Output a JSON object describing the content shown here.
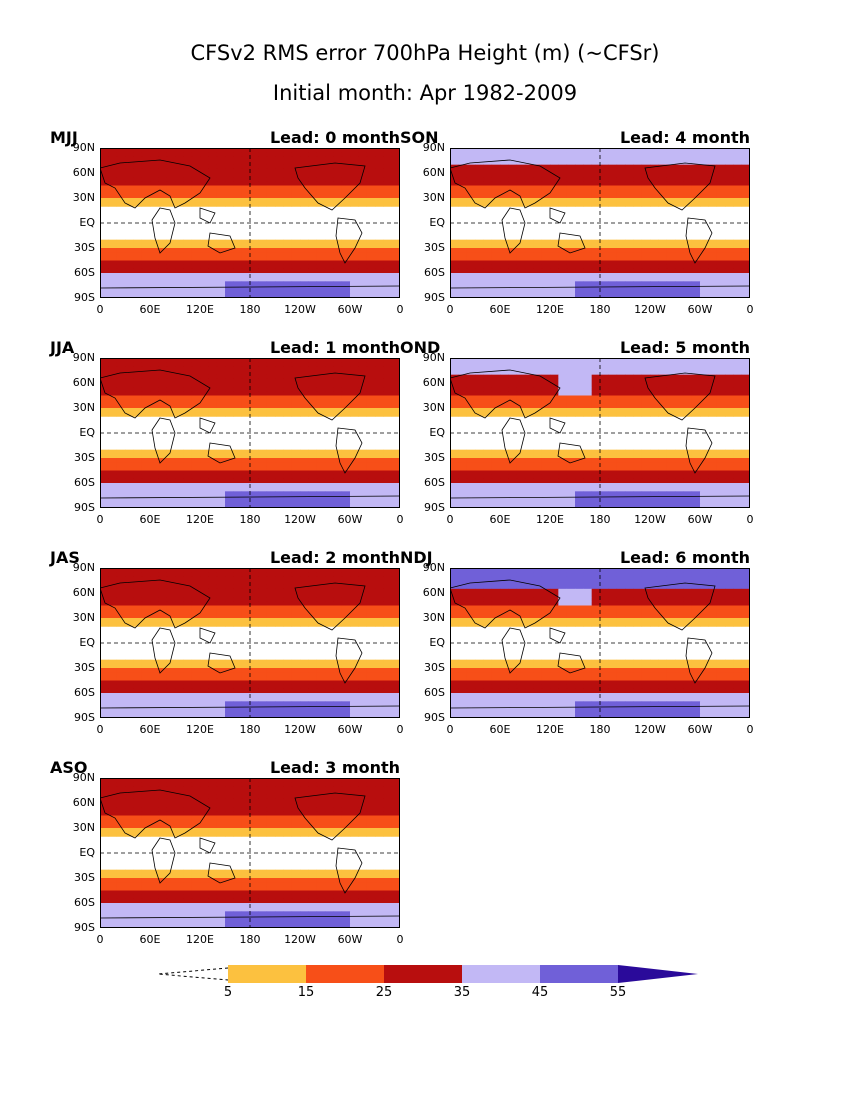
{
  "title_line1": "CFSv2 RMS error 700hPa Height (m) (~CFSr)",
  "title_line2": "Initial month: Apr 1982-2009",
  "panels": [
    {
      "season": "MJJ",
      "lead": "Lead: 0 month",
      "intensity": 0
    },
    {
      "season": "SON",
      "lead": "Lead: 4 month",
      "intensity": 4
    },
    {
      "season": "JJA",
      "lead": "Lead: 1 month",
      "intensity": 1
    },
    {
      "season": "OND",
      "lead": "Lead: 5 month",
      "intensity": 5
    },
    {
      "season": "JAS",
      "lead": "Lead: 2 month",
      "intensity": 2
    },
    {
      "season": "NDJ",
      "lead": "Lead: 6 month",
      "intensity": 6
    },
    {
      "season": "ASO",
      "lead": "Lead: 3 month",
      "intensity": 3
    }
  ],
  "lat_labels": [
    "90N",
    "60N",
    "30N",
    "EQ",
    "30S",
    "60S",
    "90S"
  ],
  "lon_labels": [
    "0",
    "60E",
    "120E",
    "180",
    "120W",
    "60W",
    "0"
  ],
  "colorbar": {
    "levels": [
      "5",
      "15",
      "25",
      "35",
      "45",
      "55"
    ],
    "colors": [
      "#ffffff",
      "#fcc13f",
      "#f74f18",
      "#b80e0e",
      "#c2b8f5",
      "#7060d8",
      "#2a0a9a"
    ]
  }
}
